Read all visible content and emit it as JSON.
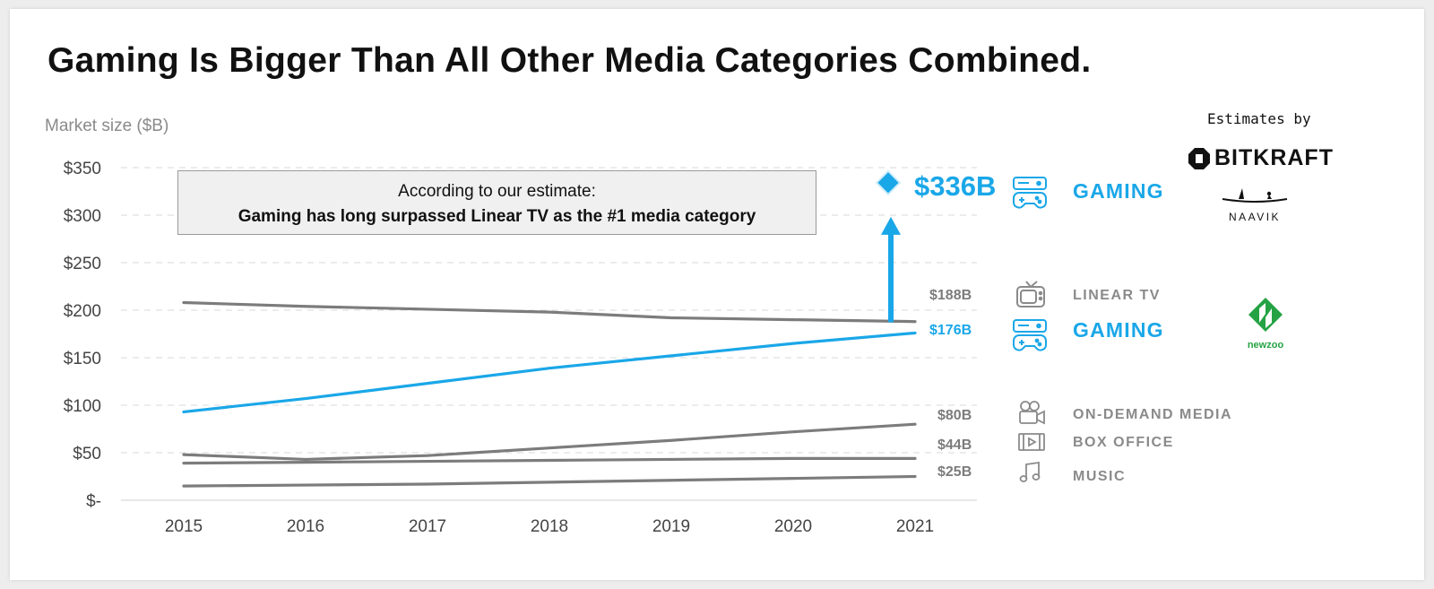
{
  "title": "Gaming Is Bigger Than All Other Media Categories Combined.",
  "chart_data": {
    "type": "line",
    "ylabel": "Market size ($B)",
    "x": [
      "2015",
      "2016",
      "2017",
      "2018",
      "2019",
      "2020",
      "2021"
    ],
    "yticks": [
      "$-",
      "$50",
      "$100",
      "$150",
      "$200",
      "$250",
      "$300",
      "$350"
    ],
    "ylim": [
      0,
      350
    ],
    "grid": true,
    "series": [
      {
        "name": "LINEAR TV",
        "values": [
          208,
          204,
          201,
          198,
          192,
          190,
          188
        ],
        "end_label": "$188B",
        "color": "#7c7c7c"
      },
      {
        "name": "GAMING",
        "values": [
          93,
          107,
          123,
          139,
          152,
          165,
          176
        ],
        "end_label": "$176B",
        "color": "#1aa7e8"
      },
      {
        "name": "ON-DEMAND MEDIA",
        "values": [
          48,
          43,
          47,
          55,
          63,
          72,
          80
        ],
        "end_label": "$80B",
        "color": "#7c7c7c"
      },
      {
        "name": "BOX OFFICE",
        "values": [
          39,
          40,
          41,
          42,
          43,
          44,
          44
        ],
        "end_label": "$44B",
        "color": "#7c7c7c"
      },
      {
        "name": "MUSIC",
        "values": [
          15,
          16,
          17,
          19,
          21,
          23,
          25
        ],
        "end_label": "$25B",
        "color": "#7c7c7c"
      }
    ],
    "estimate_point": {
      "x": "2021",
      "value": 336,
      "label": "$336B",
      "series": "GAMING"
    },
    "annotation": {
      "line1": "According to our estimate:",
      "line2": "Gaming has long surpassed Linear TV as the #1 media category"
    }
  },
  "legend": {
    "estimate_gaming": "GAMING",
    "linear_tv": "LINEAR TV",
    "gaming": "GAMING",
    "on_demand": "ON-DEMAND MEDIA",
    "box_office": "BOX OFFICE",
    "music": "MUSIC"
  },
  "sources": {
    "estimates_by": "Estimates by",
    "bitkraft": "BITKRAFT",
    "naavik": "NAAVIK",
    "newzoo": "newzoo"
  },
  "colors": {
    "gaming": "#1aa7e8",
    "other": "#7c7c7c",
    "newzoo": "#25a244"
  }
}
